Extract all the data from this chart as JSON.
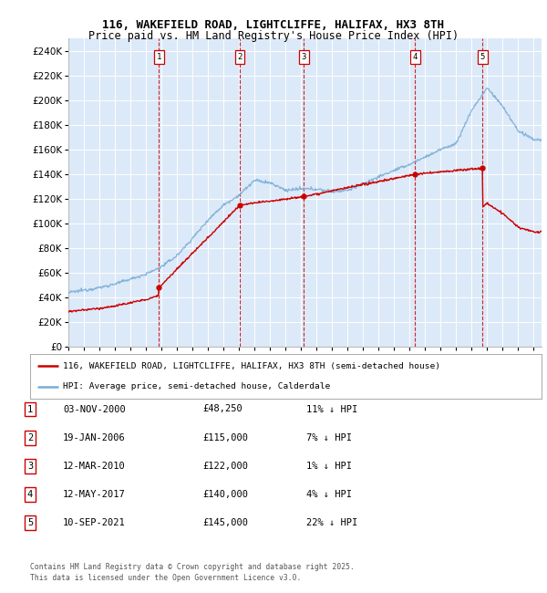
{
  "title_line1": "116, WAKEFIELD ROAD, LIGHTCLIFFE, HALIFAX, HX3 8TH",
  "title_line2": "Price paid vs. HM Land Registry's House Price Index (HPI)",
  "legend_line1": "116, WAKEFIELD ROAD, LIGHTCLIFFE, HALIFAX, HX3 8TH (semi-detached house)",
  "legend_line2": "HPI: Average price, semi-detached house, Calderdale",
  "footer_line1": "Contains HM Land Registry data © Crown copyright and database right 2025.",
  "footer_line2": "This data is licensed under the Open Government Licence v3.0.",
  "table_entries": [
    {
      "num": "1",
      "date": "03-NOV-2000",
      "price": "£48,250",
      "hpi": "11% ↓ HPI"
    },
    {
      "num": "2",
      "date": "19-JAN-2006",
      "price": "£115,000",
      "hpi": "7% ↓ HPI"
    },
    {
      "num": "3",
      "date": "12-MAR-2010",
      "price": "£122,000",
      "hpi": "1% ↓ HPI"
    },
    {
      "num": "4",
      "date": "12-MAY-2017",
      "price": "£140,000",
      "hpi": "4% ↓ HPI"
    },
    {
      "num": "5",
      "date": "10-SEP-2021",
      "price": "£145,000",
      "hpi": "22% ↓ HPI"
    }
  ],
  "sale_dates_x": [
    2000.84,
    2006.05,
    2010.19,
    2017.36,
    2021.69
  ],
  "sale_prices_y": [
    48250,
    115000,
    122000,
    140000,
    145000
  ],
  "sale_nums": [
    "1",
    "2",
    "3",
    "4",
    "5"
  ],
  "background_color": "#dce9f8",
  "red_line_color": "#cc0000",
  "blue_line_color": "#7aaed6",
  "ylim": [
    0,
    250000
  ],
  "xlim_start": 1995,
  "xlim_end": 2025.5,
  "grid_color": "#ffffff",
  "dashed_color": "#cc0000",
  "hpi_anchors_x": [
    1995,
    1996,
    1997,
    1998,
    1999,
    2000,
    2001,
    2002,
    2003,
    2004,
    2005,
    2006,
    2007,
    2008,
    2009,
    2010,
    2011,
    2012,
    2013,
    2014,
    2015,
    2016,
    2017,
    2018,
    2019,
    2020,
    2021,
    2022,
    2023,
    2024,
    2025
  ],
  "hpi_anchors_y": [
    44000,
    46000,
    48000,
    51000,
    55000,
    59000,
    65000,
    74000,
    88000,
    103000,
    115000,
    123000,
    135000,
    133000,
    127000,
    128000,
    128000,
    126000,
    127000,
    132000,
    138000,
    143000,
    148000,
    154000,
    160000,
    165000,
    192000,
    210000,
    195000,
    175000,
    168000
  ],
  "pp_before_ratio": 0.85,
  "pp_after_ratio": 0.78
}
